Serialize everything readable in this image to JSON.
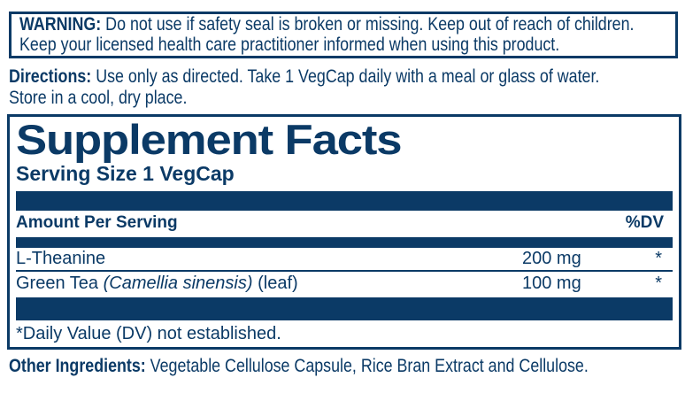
{
  "colors": {
    "navy": "#0b3a66",
    "background": "#ffffff"
  },
  "warning": {
    "label": "WARNING:",
    "text": " Do not use if safety seal is broken or missing. Keep out of reach of children.\nKeep your licensed health care practitioner informed when using this product."
  },
  "directions": {
    "label": "Directions:",
    "text": " Use only as directed. Take 1 VegCap daily with a meal or glass of water.\nStore in a cool, dry place."
  },
  "supplement_facts": {
    "title": "Supplement Facts",
    "serving_size": "Serving Size 1 VegCap",
    "columns": {
      "amount_header": "Amount Per Serving",
      "dv_header": "%DV"
    },
    "rows": [
      {
        "name": "L-Theanine",
        "name_italic": "",
        "name_suffix": "",
        "amount": "200 mg",
        "dv": "*"
      },
      {
        "name": "Green Tea ",
        "name_italic": "(Camellia sinensis)",
        "name_suffix": " (leaf)",
        "amount": "100 mg",
        "dv": "*"
      }
    ],
    "footnote": "*Daily Value (DV) not established."
  },
  "other_ingredients": {
    "label": "Other Ingredients:",
    "text": " Vegetable Cellulose Capsule, Rice Bran Extract and Cellulose."
  }
}
